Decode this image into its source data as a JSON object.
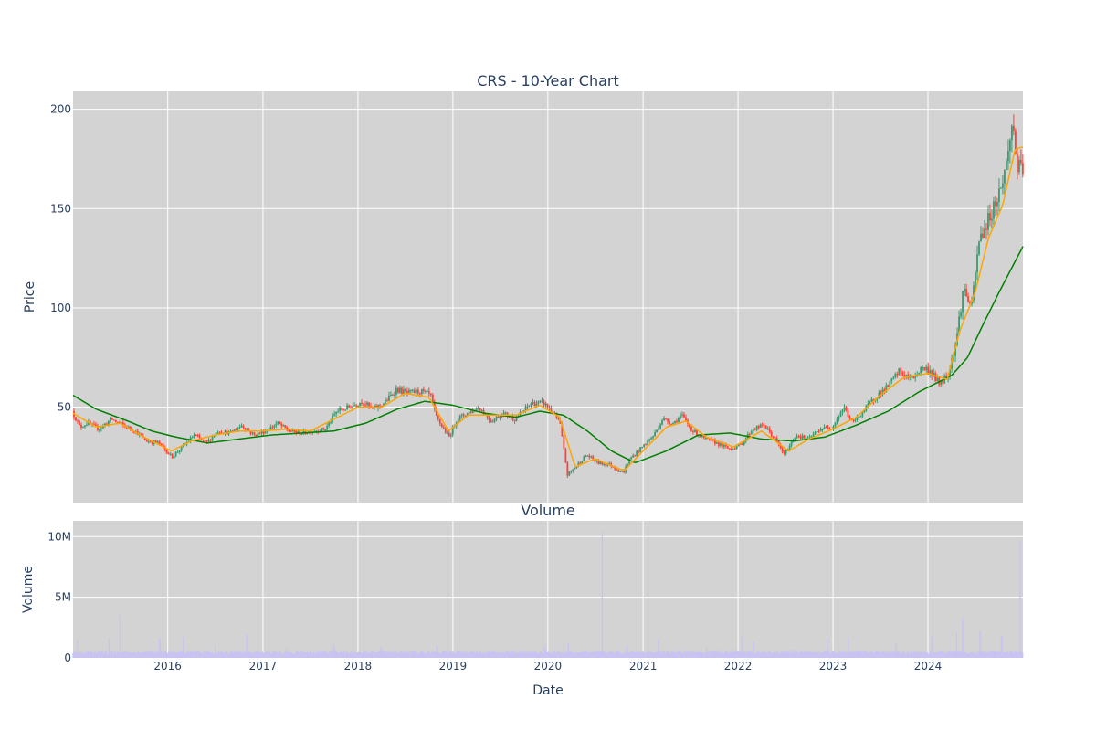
{
  "chart_data": [
    {
      "type": "candlestick",
      "title": "CRS - 10-Year Chart",
      "xlabel": "",
      "ylabel": "Price",
      "ylim": [
        2,
        209
      ],
      "xlim": [
        "2015-01-02",
        "2024-12-31"
      ],
      "grid": true,
      "colors": {
        "background": "#d3d3d3",
        "grid": "#ffffff",
        "up": "#3d9970",
        "down": "#ff4136",
        "ma_short": "#ffa500",
        "ma_long": "#008000"
      },
      "y_ticks": [
        50,
        100,
        150,
        200
      ],
      "x_ticks": [
        "2016",
        "2017",
        "2018",
        "2019",
        "2020",
        "2021",
        "2022",
        "2023",
        "2024"
      ],
      "price_path": [
        [
          "2015-01-02",
          48
        ],
        [
          "2015-02-01",
          40
        ],
        [
          "2015-03-01",
          42
        ],
        [
          "2015-04-15",
          39
        ],
        [
          "2015-06-01",
          44
        ],
        [
          "2015-07-15",
          41
        ],
        [
          "2015-09-01",
          38
        ],
        [
          "2015-10-15",
          33
        ],
        [
          "2015-12-01",
          32
        ],
        [
          "2016-01-20",
          25
        ],
        [
          "2016-03-01",
          30
        ],
        [
          "2016-04-15",
          36
        ],
        [
          "2016-06-01",
          32
        ],
        [
          "2016-07-15",
          38
        ],
        [
          "2016-09-01",
          37
        ],
        [
          "2016-10-15",
          41
        ],
        [
          "2016-12-01",
          36
        ],
        [
          "2017-01-15",
          38
        ],
        [
          "2017-03-01",
          42
        ],
        [
          "2017-04-15",
          38
        ],
        [
          "2017-06-01",
          37
        ],
        [
          "2017-07-15",
          38
        ],
        [
          "2017-09-01",
          39
        ],
        [
          "2017-10-15",
          48
        ],
        [
          "2017-12-01",
          50
        ],
        [
          "2018-01-20",
          53
        ],
        [
          "2018-03-01",
          49
        ],
        [
          "2018-04-15",
          52
        ],
        [
          "2018-06-01",
          59
        ],
        [
          "2018-07-15",
          57
        ],
        [
          "2018-09-01",
          58
        ],
        [
          "2018-10-10",
          56
        ],
        [
          "2018-11-01",
          45
        ],
        [
          "2018-12-20",
          35
        ],
        [
          "2019-01-20",
          44
        ],
        [
          "2019-03-01",
          47
        ],
        [
          "2019-04-15",
          50
        ],
        [
          "2019-06-01",
          43
        ],
        [
          "2019-07-15",
          47
        ],
        [
          "2019-09-01",
          44
        ],
        [
          "2019-10-01",
          48
        ],
        [
          "2019-11-01",
          52
        ],
        [
          "2019-12-20",
          52
        ],
        [
          "2020-01-20",
          48
        ],
        [
          "2020-02-20",
          42
        ],
        [
          "2020-03-20",
          16
        ],
        [
          "2020-04-20",
          20
        ],
        [
          "2020-06-01",
          26
        ],
        [
          "2020-07-15",
          22
        ],
        [
          "2020-09-01",
          21
        ],
        [
          "2020-10-20",
          17
        ],
        [
          "2020-11-15",
          24
        ],
        [
          "2021-01-01",
          30
        ],
        [
          "2021-02-15",
          36
        ],
        [
          "2021-03-20",
          44
        ],
        [
          "2021-05-01",
          42
        ],
        [
          "2021-06-01",
          46
        ],
        [
          "2021-07-15",
          38
        ],
        [
          "2021-09-01",
          34
        ],
        [
          "2021-10-15",
          32
        ],
        [
          "2021-12-01",
          29
        ],
        [
          "2022-01-15",
          31
        ],
        [
          "2022-03-01",
          39
        ],
        [
          "2022-04-15",
          41
        ],
        [
          "2022-06-01",
          33
        ],
        [
          "2022-07-01",
          26
        ],
        [
          "2022-08-15",
          36
        ],
        [
          "2022-10-01",
          34
        ],
        [
          "2022-11-15",
          39
        ],
        [
          "2023-01-01",
          40
        ],
        [
          "2023-02-15",
          50
        ],
        [
          "2023-03-20",
          42
        ],
        [
          "2023-05-01",
          48
        ],
        [
          "2023-06-15",
          55
        ],
        [
          "2023-08-01",
          60
        ],
        [
          "2023-09-15",
          68
        ],
        [
          "2023-11-01",
          64
        ],
        [
          "2023-12-15",
          70
        ],
        [
          "2024-01-15",
          68
        ],
        [
          "2024-02-15",
          62
        ],
        [
          "2024-03-20",
          66
        ],
        [
          "2024-04-20",
          82
        ],
        [
          "2024-05-20",
          110
        ],
        [
          "2024-06-20",
          100
        ],
        [
          "2024-07-20",
          135
        ],
        [
          "2024-08-10",
          140
        ],
        [
          "2024-09-10",
          150
        ],
        [
          "2024-10-10",
          160
        ],
        [
          "2024-11-05",
          175
        ],
        [
          "2024-11-25",
          195
        ],
        [
          "2024-12-10",
          172
        ],
        [
          "2024-12-31",
          168
        ]
      ],
      "ma_short_path": [
        [
          "2015-01-02",
          47
        ],
        [
          "2015-04-01",
          40
        ],
        [
          "2015-07-01",
          42
        ],
        [
          "2015-10-01",
          35
        ],
        [
          "2016-01-15",
          28
        ],
        [
          "2016-04-01",
          33
        ],
        [
          "2016-07-01",
          36
        ],
        [
          "2016-10-01",
          38
        ],
        [
          "2017-01-01",
          38
        ],
        [
          "2017-04-01",
          39
        ],
        [
          "2017-07-01",
          38
        ],
        [
          "2017-10-01",
          44
        ],
        [
          "2018-01-01",
          50
        ],
        [
          "2018-04-01",
          50
        ],
        [
          "2018-07-01",
          57
        ],
        [
          "2018-10-01",
          55
        ],
        [
          "2018-12-15",
          38
        ],
        [
          "2019-03-01",
          46
        ],
        [
          "2019-06-01",
          46
        ],
        [
          "2019-09-01",
          46
        ],
        [
          "2019-12-01",
          51
        ],
        [
          "2020-02-15",
          45
        ],
        [
          "2020-04-15",
          20
        ],
        [
          "2020-07-01",
          24
        ],
        [
          "2020-10-20",
          18
        ],
        [
          "2021-01-01",
          28
        ],
        [
          "2021-04-01",
          40
        ],
        [
          "2021-06-15",
          43
        ],
        [
          "2021-09-01",
          35
        ],
        [
          "2021-12-15",
          30
        ],
        [
          "2022-04-01",
          38
        ],
        [
          "2022-07-15",
          28
        ],
        [
          "2022-10-01",
          34
        ],
        [
          "2023-01-01",
          39
        ],
        [
          "2023-04-01",
          45
        ],
        [
          "2023-07-01",
          56
        ],
        [
          "2023-10-01",
          65
        ],
        [
          "2024-01-01",
          67
        ],
        [
          "2024-03-15",
          64
        ],
        [
          "2024-05-01",
          88
        ],
        [
          "2024-07-01",
          108
        ],
        [
          "2024-08-20",
          135
        ],
        [
          "2024-10-15",
          152
        ],
        [
          "2024-12-01",
          180
        ],
        [
          "2024-12-31",
          181
        ]
      ],
      "ma_long_path": [
        [
          "2015-01-02",
          56
        ],
        [
          "2015-04-01",
          49
        ],
        [
          "2015-08-01",
          43
        ],
        [
          "2015-11-01",
          38
        ],
        [
          "2016-02-01",
          35
        ],
        [
          "2016-06-01",
          32
        ],
        [
          "2016-10-01",
          34
        ],
        [
          "2017-02-01",
          36
        ],
        [
          "2017-06-01",
          37
        ],
        [
          "2017-10-01",
          38
        ],
        [
          "2018-02-01",
          42
        ],
        [
          "2018-06-01",
          49
        ],
        [
          "2018-09-15",
          53
        ],
        [
          "2019-01-01",
          51
        ],
        [
          "2019-05-01",
          47
        ],
        [
          "2019-09-01",
          45
        ],
        [
          "2019-12-01",
          48
        ],
        [
          "2020-03-01",
          46
        ],
        [
          "2020-06-01",
          38
        ],
        [
          "2020-09-01",
          28
        ],
        [
          "2020-12-01",
          22
        ],
        [
          "2021-04-01",
          28
        ],
        [
          "2021-08-01",
          36
        ],
        [
          "2021-12-01",
          37
        ],
        [
          "2022-04-01",
          34
        ],
        [
          "2022-08-01",
          33
        ],
        [
          "2022-12-01",
          35
        ],
        [
          "2023-04-01",
          41
        ],
        [
          "2023-08-01",
          48
        ],
        [
          "2023-12-01",
          58
        ],
        [
          "2024-04-01",
          66
        ],
        [
          "2024-06-01",
          75
        ],
        [
          "2024-08-01",
          92
        ],
        [
          "2024-10-01",
          108
        ],
        [
          "2024-12-31",
          131
        ]
      ]
    },
    {
      "type": "bar",
      "title": "Volume",
      "xlabel": "Date",
      "ylabel": "Volume",
      "ylim": [
        0,
        11300000
      ],
      "grid": true,
      "y_ticks": [
        0,
        5000000,
        10000000
      ],
      "y_tick_labels": [
        "0",
        "5M",
        "10M"
      ],
      "colors": {
        "bar": "#c8c3f0"
      },
      "baseline_mid": 450000,
      "spikes": [
        [
          "2015-01-20",
          1500000
        ],
        [
          "2015-05-20",
          1600000
        ],
        [
          "2015-07-01",
          3500000
        ],
        [
          "2015-12-01",
          1600000
        ],
        [
          "2016-03-01",
          1700000
        ],
        [
          "2016-07-01",
          1100000
        ],
        [
          "2016-11-01",
          1900000
        ],
        [
          "2017-04-01",
          900000
        ],
        [
          "2017-10-01",
          1000000
        ],
        [
          "2018-04-01",
          900000
        ],
        [
          "2018-11-01",
          1000000
        ],
        [
          "2019-06-01",
          600000
        ],
        [
          "2019-12-20",
          900000
        ],
        [
          "2020-03-20",
          1200000
        ],
        [
          "2020-07-28",
          10400000
        ],
        [
          "2020-11-01",
          1000000
        ],
        [
          "2021-03-01",
          1600000
        ],
        [
          "2021-09-01",
          800000
        ],
        [
          "2022-01-15",
          1700000
        ],
        [
          "2022-03-01",
          1300000
        ],
        [
          "2022-08-01",
          700000
        ],
        [
          "2022-12-10",
          1600000
        ],
        [
          "2023-03-01",
          1700000
        ],
        [
          "2023-09-01",
          1300000
        ],
        [
          "2024-01-15",
          1800000
        ],
        [
          "2024-04-20",
          2100000
        ],
        [
          "2024-05-15",
          3300000
        ],
        [
          "2024-07-20",
          2200000
        ],
        [
          "2024-10-10",
          1800000
        ],
        [
          "2024-12-20",
          9700000
        ]
      ]
    }
  ]
}
